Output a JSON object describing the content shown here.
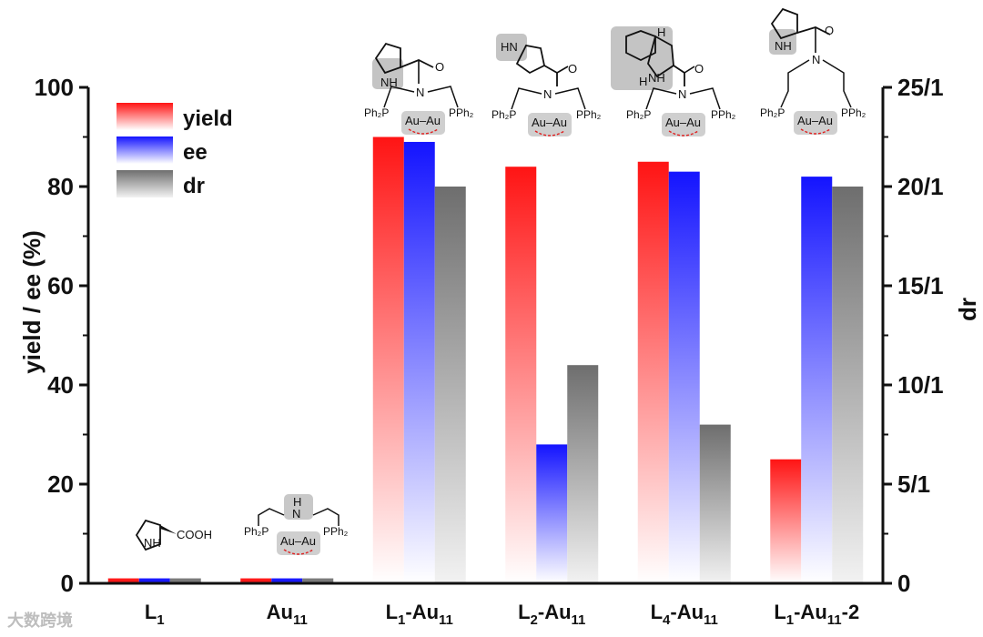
{
  "chart_data": {
    "type": "bar",
    "categories": [
      {
        "main": "L",
        "sub": "1",
        "tail": ""
      },
      {
        "main": "Au",
        "sub": "11",
        "tail": ""
      },
      {
        "main": "L",
        "sub": "1",
        "tail": "-Au",
        "sub2": "11"
      },
      {
        "main": "L",
        "sub": "2",
        "tail": "-Au",
        "sub2": "11"
      },
      {
        "main": "L",
        "sub": "4",
        "tail": "-Au",
        "sub2": "11"
      },
      {
        "main": "L",
        "sub": "1",
        "tail": "-Au",
        "sub2": "11",
        "tail2": "-2"
      }
    ],
    "series": [
      {
        "name": "yield",
        "axis": "left",
        "values": [
          1,
          1,
          90,
          84,
          85,
          25
        ],
        "color": "#ff1a1a"
      },
      {
        "name": "ee",
        "axis": "left",
        "values": [
          1,
          1,
          89,
          28,
          83,
          82
        ],
        "color": "#1a1aff"
      },
      {
        "name": "dr",
        "axis": "right",
        "values": [
          0.25,
          0.25,
          20,
          11,
          8,
          20
        ],
        "color": "#7a7a7a"
      }
    ],
    "ylabel": "yield / ee (%)",
    "ylim": [
      0,
      100
    ],
    "yticks": [
      "0",
      "20",
      "40",
      "60",
      "80",
      "100"
    ],
    "y2label": "dr",
    "y2lim": [
      0,
      25
    ],
    "y2ticks": [
      "0",
      "5/1",
      "10/1",
      "15/1",
      "20/1",
      "25/1"
    ],
    "legend": "top-left",
    "grid": false
  },
  "structures": {
    "L1_cooh": "COOH",
    "nh": "NH",
    "hn": "HN",
    "n": "N",
    "h": "H",
    "o": "O",
    "ph2p": "Ph₂P",
    "pph2": "PPh₂",
    "auau": "Au–Au"
  },
  "watermark": "大数跨境"
}
